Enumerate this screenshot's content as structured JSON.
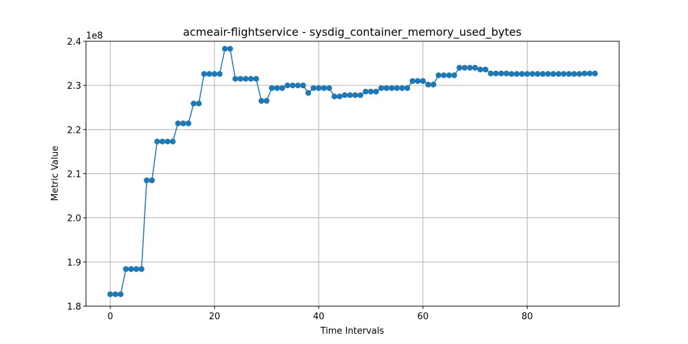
{
  "chart_data": {
    "type": "line",
    "title": "acmeair-flightservice - sysdig_container_memory_used_bytes",
    "xlabel": "Time Intervals",
    "ylabel": "Metric Value",
    "y_multiplier_label": "1e8",
    "xlim": [
      -4.65,
      97.65
    ],
    "ylim": [
      1.8,
      2.4
    ],
    "x_ticks": [
      0,
      20,
      40,
      60,
      80
    ],
    "x_tick_labels": [
      "0",
      "20",
      "40",
      "60",
      "80"
    ],
    "y_ticks": [
      1.8,
      1.9,
      2.0,
      2.1,
      2.2,
      2.3,
      2.4
    ],
    "y_tick_labels": [
      "1.8",
      "1.9",
      "2.0",
      "2.1",
      "2.2",
      "2.3",
      "2.4"
    ],
    "grid": true,
    "series": [
      {
        "color": "#1f77b4",
        "marker": "circle",
        "x": [
          0,
          1,
          2,
          3,
          4,
          5,
          6,
          7,
          8,
          9,
          10,
          11,
          12,
          13,
          14,
          15,
          16,
          17,
          18,
          19,
          20,
          21,
          22,
          23,
          24,
          25,
          26,
          27,
          28,
          29,
          30,
          31,
          32,
          33,
          34,
          35,
          36,
          37,
          38,
          39,
          40,
          41,
          42,
          43,
          44,
          45,
          46,
          47,
          48,
          49,
          50,
          51,
          52,
          53,
          54,
          55,
          56,
          57,
          58,
          59,
          60,
          61,
          62,
          63,
          64,
          65,
          66,
          67,
          68,
          69,
          70,
          71,
          72,
          73,
          74,
          75,
          76,
          77,
          78,
          79,
          80,
          81,
          82,
          83,
          84,
          85,
          86,
          87,
          88,
          89,
          90,
          91,
          92,
          93
        ],
        "values": [
          1.827,
          1.827,
          1.827,
          1.884,
          1.884,
          1.884,
          1.884,
          2.085,
          2.085,
          2.173,
          2.173,
          2.173,
          2.173,
          2.214,
          2.214,
          2.214,
          2.259,
          2.259,
          2.326,
          2.326,
          2.326,
          2.326,
          2.383,
          2.383,
          2.315,
          2.315,
          2.315,
          2.315,
          2.315,
          2.265,
          2.265,
          2.294,
          2.294,
          2.294,
          2.3,
          2.3,
          2.3,
          2.3,
          2.283,
          2.294,
          2.294,
          2.294,
          2.294,
          2.275,
          2.275,
          2.278,
          2.278,
          2.278,
          2.278,
          2.286,
          2.286,
          2.286,
          2.294,
          2.294,
          2.294,
          2.294,
          2.294,
          2.294,
          2.31,
          2.31,
          2.31,
          2.302,
          2.302,
          2.323,
          2.323,
          2.323,
          2.323,
          2.34,
          2.34,
          2.34,
          2.34,
          2.336,
          2.336,
          2.327,
          2.327,
          2.327,
          2.327,
          2.326,
          2.326,
          2.326,
          2.326,
          2.326,
          2.326,
          2.326,
          2.326,
          2.326,
          2.326,
          2.326,
          2.326,
          2.326,
          2.326,
          2.327,
          2.327,
          2.327
        ]
      }
    ]
  }
}
